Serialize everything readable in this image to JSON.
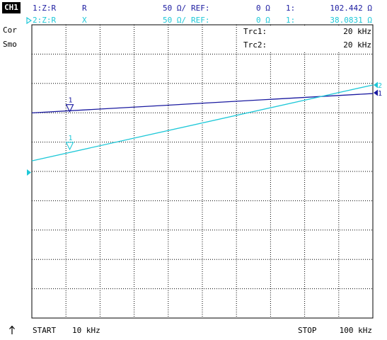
{
  "channel_badge": "CH1",
  "side_labels": [
    "Cor",
    "Smo"
  ],
  "trace1": {
    "id": "1:Z:R",
    "format": "R",
    "scale": "50 Ω/",
    "ref_label": "REF:",
    "ref_value": "0 Ω",
    "marker_label": "1:",
    "marker_value": "102.442 Ω",
    "color": "#1a1aa0"
  },
  "trace2": {
    "prefix_icon": "triangle-right-icon",
    "id": "2:Z:R",
    "format": "X",
    "scale": "50 Ω/",
    "ref_label": "REF:",
    "ref_value": "0 Ω",
    "marker_label": "1:",
    "marker_value": "38.0831 Ω",
    "color": "#1ec8d8"
  },
  "marker_readout": [
    {
      "label": "Trc1:",
      "value": "20 kHz"
    },
    {
      "label": "Trc2:",
      "value": "20 kHz"
    }
  ],
  "footer": {
    "arrow_icon": "arrow-up-icon",
    "start_label": "START",
    "start_value": "10 kHz",
    "stop_label": "STOP",
    "stop_value": "100 kHz"
  },
  "chart_data": {
    "type": "line",
    "x_range": [
      10,
      100
    ],
    "x_unit": "kHz",
    "grid": true,
    "divisions": {
      "x": 10,
      "y": 10
    },
    "series": [
      {
        "name": "1",
        "trace": 1,
        "color": "#1a1aa0",
        "start": 101.6,
        "end": 134.6,
        "end_marker": "1"
      },
      {
        "name": "2",
        "trace": 2,
        "color": "#1ec8d8",
        "start": 19.8,
        "end": 149.2,
        "end_marker": "2"
      }
    ],
    "markers": [
      {
        "label": "1",
        "trace": 1,
        "x": 20,
        "value": 102.442
      },
      {
        "label": "1",
        "trace": 2,
        "x": 20,
        "value": 38.0831
      }
    ],
    "reference_marker_value": 0
  }
}
